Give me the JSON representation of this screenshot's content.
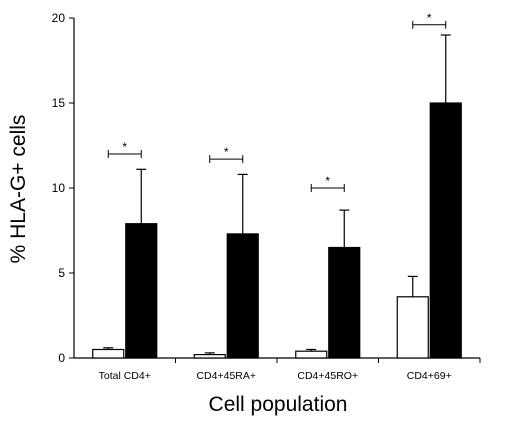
{
  "chart_data": {
    "type": "bar",
    "xlabel": "Cell population",
    "ylabel": "% HLA-G+ cells",
    "ylim": [
      0,
      20
    ],
    "yticks": [
      0,
      5,
      10,
      15,
      20
    ],
    "grid": false,
    "legend": "none",
    "categories": [
      "Total CD4+",
      "CD4+45RA+",
      "CD4+45RO+",
      "CD4+69+"
    ],
    "series": [
      {
        "fill": "#ffffff",
        "values": [
          0.5,
          0.2,
          0.4,
          3.6
        ],
        "error": [
          0.1,
          0.1,
          0.1,
          1.2
        ]
      },
      {
        "fill": "#000000",
        "values": [
          7.9,
          7.3,
          6.5,
          15.0
        ],
        "error": [
          3.2,
          3.5,
          2.2,
          4.0
        ]
      }
    ],
    "significance": [
      {
        "category": 0,
        "label": "*",
        "y": 12.0
      },
      {
        "category": 1,
        "label": "*",
        "y": 11.7
      },
      {
        "category": 2,
        "label": "*",
        "y": 10.0
      },
      {
        "category": 3,
        "label": "*",
        "y": 19.6
      }
    ]
  }
}
